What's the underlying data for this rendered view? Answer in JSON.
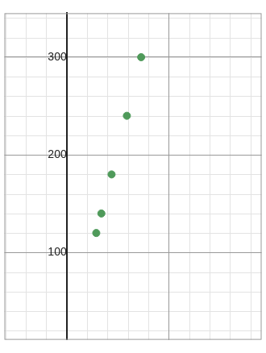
{
  "chart_data": {
    "type": "scatter",
    "x": [
      0.29,
      0.34,
      0.44,
      0.59,
      0.73
    ],
    "values": [
      120,
      140,
      180,
      240,
      300
    ],
    "color": "#4f9a5a",
    "xlim": [
      -0.61,
      1.91
    ],
    "ylim": [
      10.7,
      345
    ],
    "xticks": [
      0,
      1
    ],
    "yticks": [
      100,
      200,
      300
    ],
    "grid": true,
    "tick_labels": "y",
    "marker": "circle"
  }
}
